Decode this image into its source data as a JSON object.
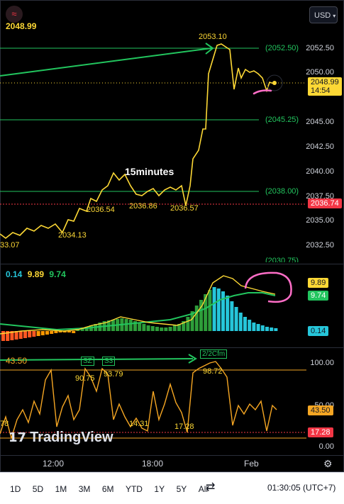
{
  "header": {
    "symbol_badge": "≈",
    "last_price": "2048.99",
    "currency_button": "USD"
  },
  "main_pane": {
    "interval_note": "15minutes",
    "price_labels": [
      "2053.10",
      "2036.54",
      "2036.86",
      "2036.57",
      "2034.13",
      "33.07"
    ],
    "level_labels": [
      "(2052.50)",
      "(2045.25)",
      "(2038.00)",
      "(2030.75)"
    ],
    "axis_ticks": [
      "2052.50",
      "2050.00",
      "2045.00",
      "2042.50",
      "2040.00",
      "2037.50",
      "2035.00",
      "2032.50"
    ],
    "current_price_tag": "2048.99",
    "countdown": "14:54",
    "red_level_tag": "2036.74",
    "level_colors": {
      "green_line": "#22c55e",
      "red_dotted": "#f23645",
      "price_line": "#fdd835"
    }
  },
  "indicator_pane_1": {
    "legend_values": [
      "0.14",
      "9.89",
      "9.74"
    ],
    "tag_yellow": "9.89",
    "tag_green": "9.74",
    "tag_cyan": "0.14"
  },
  "indicator_pane_2": {
    "legend_value": "43.50",
    "peak_labels": [
      "90.75",
      "93.79",
      "98.72",
      "14.31",
      "17.28",
      "78"
    ],
    "box_labels": [
      "SZ",
      "S3",
      "2/2Cfm"
    ],
    "axis_ticks": [
      "100.00",
      "50.00",
      "0.00"
    ],
    "tag_orange": "43.50",
    "tag_red": "17.28"
  },
  "time_axis": {
    "ticks": [
      "12:00",
      "18:00",
      "Feb"
    ]
  },
  "branding": {
    "logo_text": "TradingView"
  },
  "bottom_bar": {
    "ranges": [
      "1D",
      "5D",
      "1M",
      "3M",
      "6M",
      "YTD",
      "1Y",
      "5Y",
      "All"
    ],
    "clock": "01:30:05 (UTC+7)"
  }
}
